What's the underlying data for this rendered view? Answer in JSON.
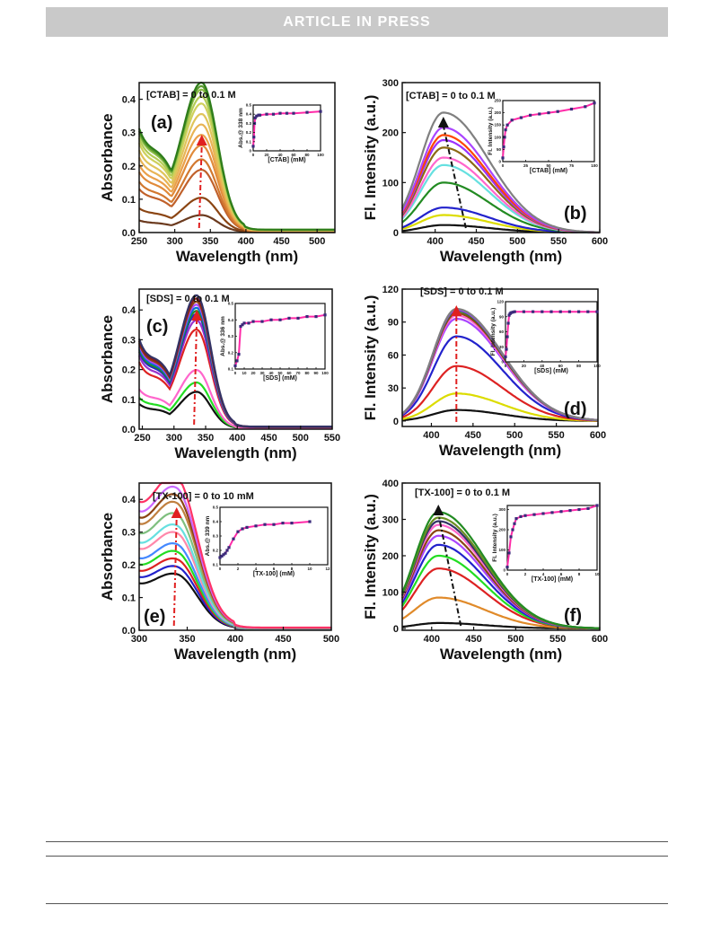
{
  "header": {
    "banner": "ARTICLE IN PRESS"
  },
  "chart_data": [
    {
      "panel": "(a)",
      "type": "line",
      "annotation": "[CTAB] = 0 to 0.1 M",
      "xlabel": "Wavelength (nm)",
      "ylabel": "Absorbance",
      "xlim": [
        250,
        525
      ],
      "ylim": [
        0,
        0.45
      ],
      "xticks": [
        250,
        300,
        350,
        400,
        450,
        500
      ],
      "yticks": [
        0.0,
        0.1,
        0.2,
        0.3,
        0.4
      ],
      "peak_x": 338,
      "peak_heights": [
        0.05,
        0.1,
        0.18,
        0.21,
        0.25,
        0.28,
        0.31,
        0.34,
        0.37,
        0.39,
        0.41,
        0.42,
        0.43
      ],
      "colors": [
        "#6b3a1e",
        "#8b4513",
        "#c0612b",
        "#d2782f",
        "#e08a3a",
        "#eaa04a",
        "#e8b455",
        "#e0c45a",
        "#cfd05c",
        "#b4cc55",
        "#8fbf48",
        "#5a9a2e",
        "#2e7d1a"
      ],
      "arrow_color": "#e02020",
      "inset": {
        "ylabel": "Abs.@ 338 nm",
        "xlabel": "[CTAB] (mM)",
        "xlim": [
          0,
          100
        ],
        "ylim": [
          0,
          0.5
        ],
        "xticks": [
          0,
          20,
          40,
          60,
          80,
          100
        ],
        "yticks": [
          0.0,
          0.1,
          0.2,
          0.3,
          0.4,
          0.5
        ],
        "x": [
          0,
          1,
          2,
          3,
          5,
          8,
          10,
          20,
          30,
          40,
          50,
          60,
          80,
          100
        ],
        "y": [
          0.05,
          0.15,
          0.3,
          0.36,
          0.38,
          0.39,
          0.39,
          0.4,
          0.4,
          0.41,
          0.41,
          0.41,
          0.42,
          0.43
        ]
      }
    },
    {
      "panel": "(b)",
      "type": "line",
      "annotation": "[CTAB] = 0 to 0.1 M",
      "xlabel": "Wavelength (nm)",
      "ylabel": "Fl. Intensity (a.u.)",
      "xlim": [
        360,
        600
      ],
      "ylim": [
        0,
        300
      ],
      "xticks": [
        400,
        450,
        500,
        550,
        600
      ],
      "yticks": [
        0,
        100,
        200,
        300
      ],
      "peak_x": 410,
      "peak_heights": [
        15,
        35,
        50,
        100,
        135,
        150,
        170,
        185,
        195,
        210,
        240
      ],
      "colors": [
        "#111111",
        "#dcdc00",
        "#2222cc",
        "#228b22",
        "#66e0e0",
        "#ff66cc",
        "#8b6914",
        "#9b30ff",
        "#ff4500",
        "#aa44ff",
        "#808080"
      ],
      "arrow_color": "#111111",
      "inset": {
        "ylabel": "Fl. Intensity (a.u.)",
        "xlabel": "[CTAB] (mM)",
        "xlim": [
          0,
          100
        ],
        "ylim": [
          0,
          250
        ],
        "xticks": [
          0,
          25,
          50,
          75,
          100
        ],
        "yticks": [
          0,
          50,
          100,
          150,
          200,
          250
        ],
        "x": [
          0,
          1,
          2,
          3,
          5,
          10,
          20,
          30,
          40,
          50,
          60,
          75,
          90,
          100
        ],
        "y": [
          15,
          60,
          100,
          130,
          150,
          170,
          180,
          190,
          195,
          200,
          205,
          215,
          225,
          240
        ]
      }
    },
    {
      "panel": "(c)",
      "type": "line",
      "annotation": "[SDS] = 0 to 0.1 M",
      "xlabel": "Wavelength (nm)",
      "ylabel": "Absorbance",
      "xlim": [
        245,
        550
      ],
      "ylim": [
        0,
        0.47
      ],
      "xticks": [
        250,
        300,
        350,
        400,
        450,
        500,
        550
      ],
      "yticks": [
        0.0,
        0.1,
        0.2,
        0.3,
        0.4
      ],
      "peak_x": 336,
      "peak_heights": [
        0.12,
        0.15,
        0.19,
        0.32,
        0.35,
        0.37,
        0.38,
        0.39,
        0.4,
        0.41,
        0.42,
        0.43
      ],
      "colors": [
        "#111111",
        "#22dd22",
        "#ff66cc",
        "#dd2222",
        "#9933cc",
        "#2222cc",
        "#228b22",
        "#0077cc",
        "#aa44ff",
        "#8b4513",
        "#8b1a1a",
        "#333366"
      ],
      "arrow_color": "#e02020",
      "inset": {
        "ylabel": "Abs.@ 336 nm",
        "xlabel": "[SDS] (mM)",
        "xlim": [
          0,
          100
        ],
        "ylim": [
          0.1,
          0.5
        ],
        "xticks": [
          0,
          10,
          20,
          30,
          40,
          50,
          60,
          70,
          80,
          90,
          100
        ],
        "yticks": [
          0.1,
          0.2,
          0.3,
          0.4,
          0.5
        ],
        "x": [
          0,
          2,
          4,
          6,
          8,
          10,
          15,
          20,
          30,
          40,
          50,
          60,
          70,
          80,
          90,
          100
        ],
        "y": [
          0.12,
          0.15,
          0.19,
          0.36,
          0.37,
          0.38,
          0.38,
          0.39,
          0.39,
          0.4,
          0.4,
          0.41,
          0.41,
          0.42,
          0.42,
          0.43
        ]
      }
    },
    {
      "panel": "(d)",
      "type": "line",
      "annotation": "[SDS] = 0 to 0.1 M",
      "xlabel": "Wavelength (nm)",
      "ylabel": "Fl. Intensity (a.u.)",
      "xlim": [
        365,
        600
      ],
      "ylim": [
        -5,
        120
      ],
      "xticks": [
        400,
        450,
        500,
        550,
        600
      ],
      "yticks": [
        0,
        30,
        60,
        90,
        120
      ],
      "peak_x": 430,
      "peak_heights": [
        10,
        25,
        50,
        77,
        93,
        96,
        98,
        100,
        101,
        102
      ],
      "colors": [
        "#111111",
        "#dcdc00",
        "#dd2222",
        "#2222cc",
        "#aa44ff",
        "#ff66cc",
        "#8b4513",
        "#228b22",
        "#9b30ff",
        "#808080"
      ],
      "arrow_color": "#e02020",
      "inset": {
        "ylabel": "Fl. Intensity (a.u.)",
        "xlabel": "[SDS] (mM)",
        "xlim": [
          0,
          100
        ],
        "ylim": [
          0,
          120
        ],
        "xticks": [
          0,
          20,
          40,
          60,
          80,
          100
        ],
        "yticks": [
          0,
          30,
          60,
          90,
          120
        ],
        "x": [
          0,
          1,
          2,
          3,
          4,
          5,
          6,
          8,
          10,
          20,
          30,
          40,
          50,
          60,
          70,
          80,
          90,
          100
        ],
        "y": [
          10,
          25,
          50,
          77,
          93,
          96,
          98,
          99,
          100,
          100,
          100,
          100,
          100,
          100,
          100,
          100,
          100,
          100
        ]
      }
    },
    {
      "panel": "(e)",
      "type": "line",
      "annotation": "[TX-100] = 0 to 10 mM",
      "xlabel": "Wavelength (nm)",
      "ylabel": "Absorbance",
      "xlim": [
        300,
        500
      ],
      "ylim": [
        0,
        0.45
      ],
      "xticks": [
        300,
        350,
        400,
        450,
        500
      ],
      "yticks": [
        0.0,
        0.1,
        0.2,
        0.3,
        0.4
      ],
      "peak_x": 339,
      "peak_heights": [
        0.15,
        0.17,
        0.19,
        0.21,
        0.23,
        0.26,
        0.28,
        0.31,
        0.34,
        0.36,
        0.38,
        0.41
      ],
      "colors": [
        "#111111",
        "#2222cc",
        "#dd2222",
        "#22dd22",
        "#4488ff",
        "#ff88aa",
        "#66e0e0",
        "#7fbf7f",
        "#c08040",
        "#8b4513",
        "#cc66ff",
        "#ff3366"
      ],
      "arrow_color": "#e02020",
      "inset": {
        "ylabel": "Abs.@ 339 nm",
        "xlabel": "[TX-100] (mM)",
        "xlim": [
          0,
          12
        ],
        "ylim": [
          0.1,
          0.5
        ],
        "xticks": [
          0,
          2,
          4,
          6,
          8,
          10,
          12
        ],
        "yticks": [
          0.1,
          0.2,
          0.3,
          0.4,
          0.5
        ],
        "x": [
          0,
          0.2,
          0.4,
          0.6,
          0.8,
          1,
          1.5,
          2,
          2.5,
          3,
          4,
          5,
          6,
          7,
          8,
          10
        ],
        "y": [
          0.15,
          0.16,
          0.17,
          0.18,
          0.2,
          0.22,
          0.28,
          0.33,
          0.35,
          0.36,
          0.37,
          0.38,
          0.38,
          0.39,
          0.39,
          0.4
        ]
      }
    },
    {
      "panel": "(f)",
      "type": "line",
      "annotation": "[TX-100] = 0 to 0.1 M",
      "xlabel": "Wavelength (nm)",
      "ylabel": "Fl. Intensity (a.u.)",
      "xlim": [
        365,
        600
      ],
      "ylim": [
        -5,
        400
      ],
      "xticks": [
        400,
        450,
        500,
        550,
        600
      ],
      "yticks": [
        0,
        100,
        200,
        300,
        400
      ],
      "peak_x": 408,
      "peak_heights": [
        15,
        85,
        165,
        200,
        230,
        255,
        270,
        285,
        295,
        305,
        320
      ],
      "colors": [
        "#111111",
        "#e08a2a",
        "#dd2222",
        "#22dd22",
        "#2222cc",
        "#aa44ff",
        "#8b4513",
        "#ff66cc",
        "#333366",
        "#6b8e23",
        "#228b22"
      ],
      "arrow_color": "#111111",
      "inset": {
        "ylabel": "Fl. Intensity (a.u.)",
        "xlabel": "[TX-100] (mM)",
        "xlim": [
          0,
          10
        ],
        "ylim": [
          0,
          320
        ],
        "xticks": [
          0,
          2,
          4,
          6,
          8,
          10
        ],
        "yticks": [
          0,
          100,
          200,
          300
        ],
        "x": [
          0,
          0.2,
          0.4,
          0.6,
          0.8,
          1,
          1.5,
          2,
          3,
          4,
          5,
          6,
          7,
          8,
          9,
          10
        ],
        "y": [
          15,
          85,
          165,
          200,
          230,
          255,
          265,
          270,
          275,
          280,
          285,
          290,
          295,
          300,
          305,
          320
        ]
      }
    }
  ]
}
